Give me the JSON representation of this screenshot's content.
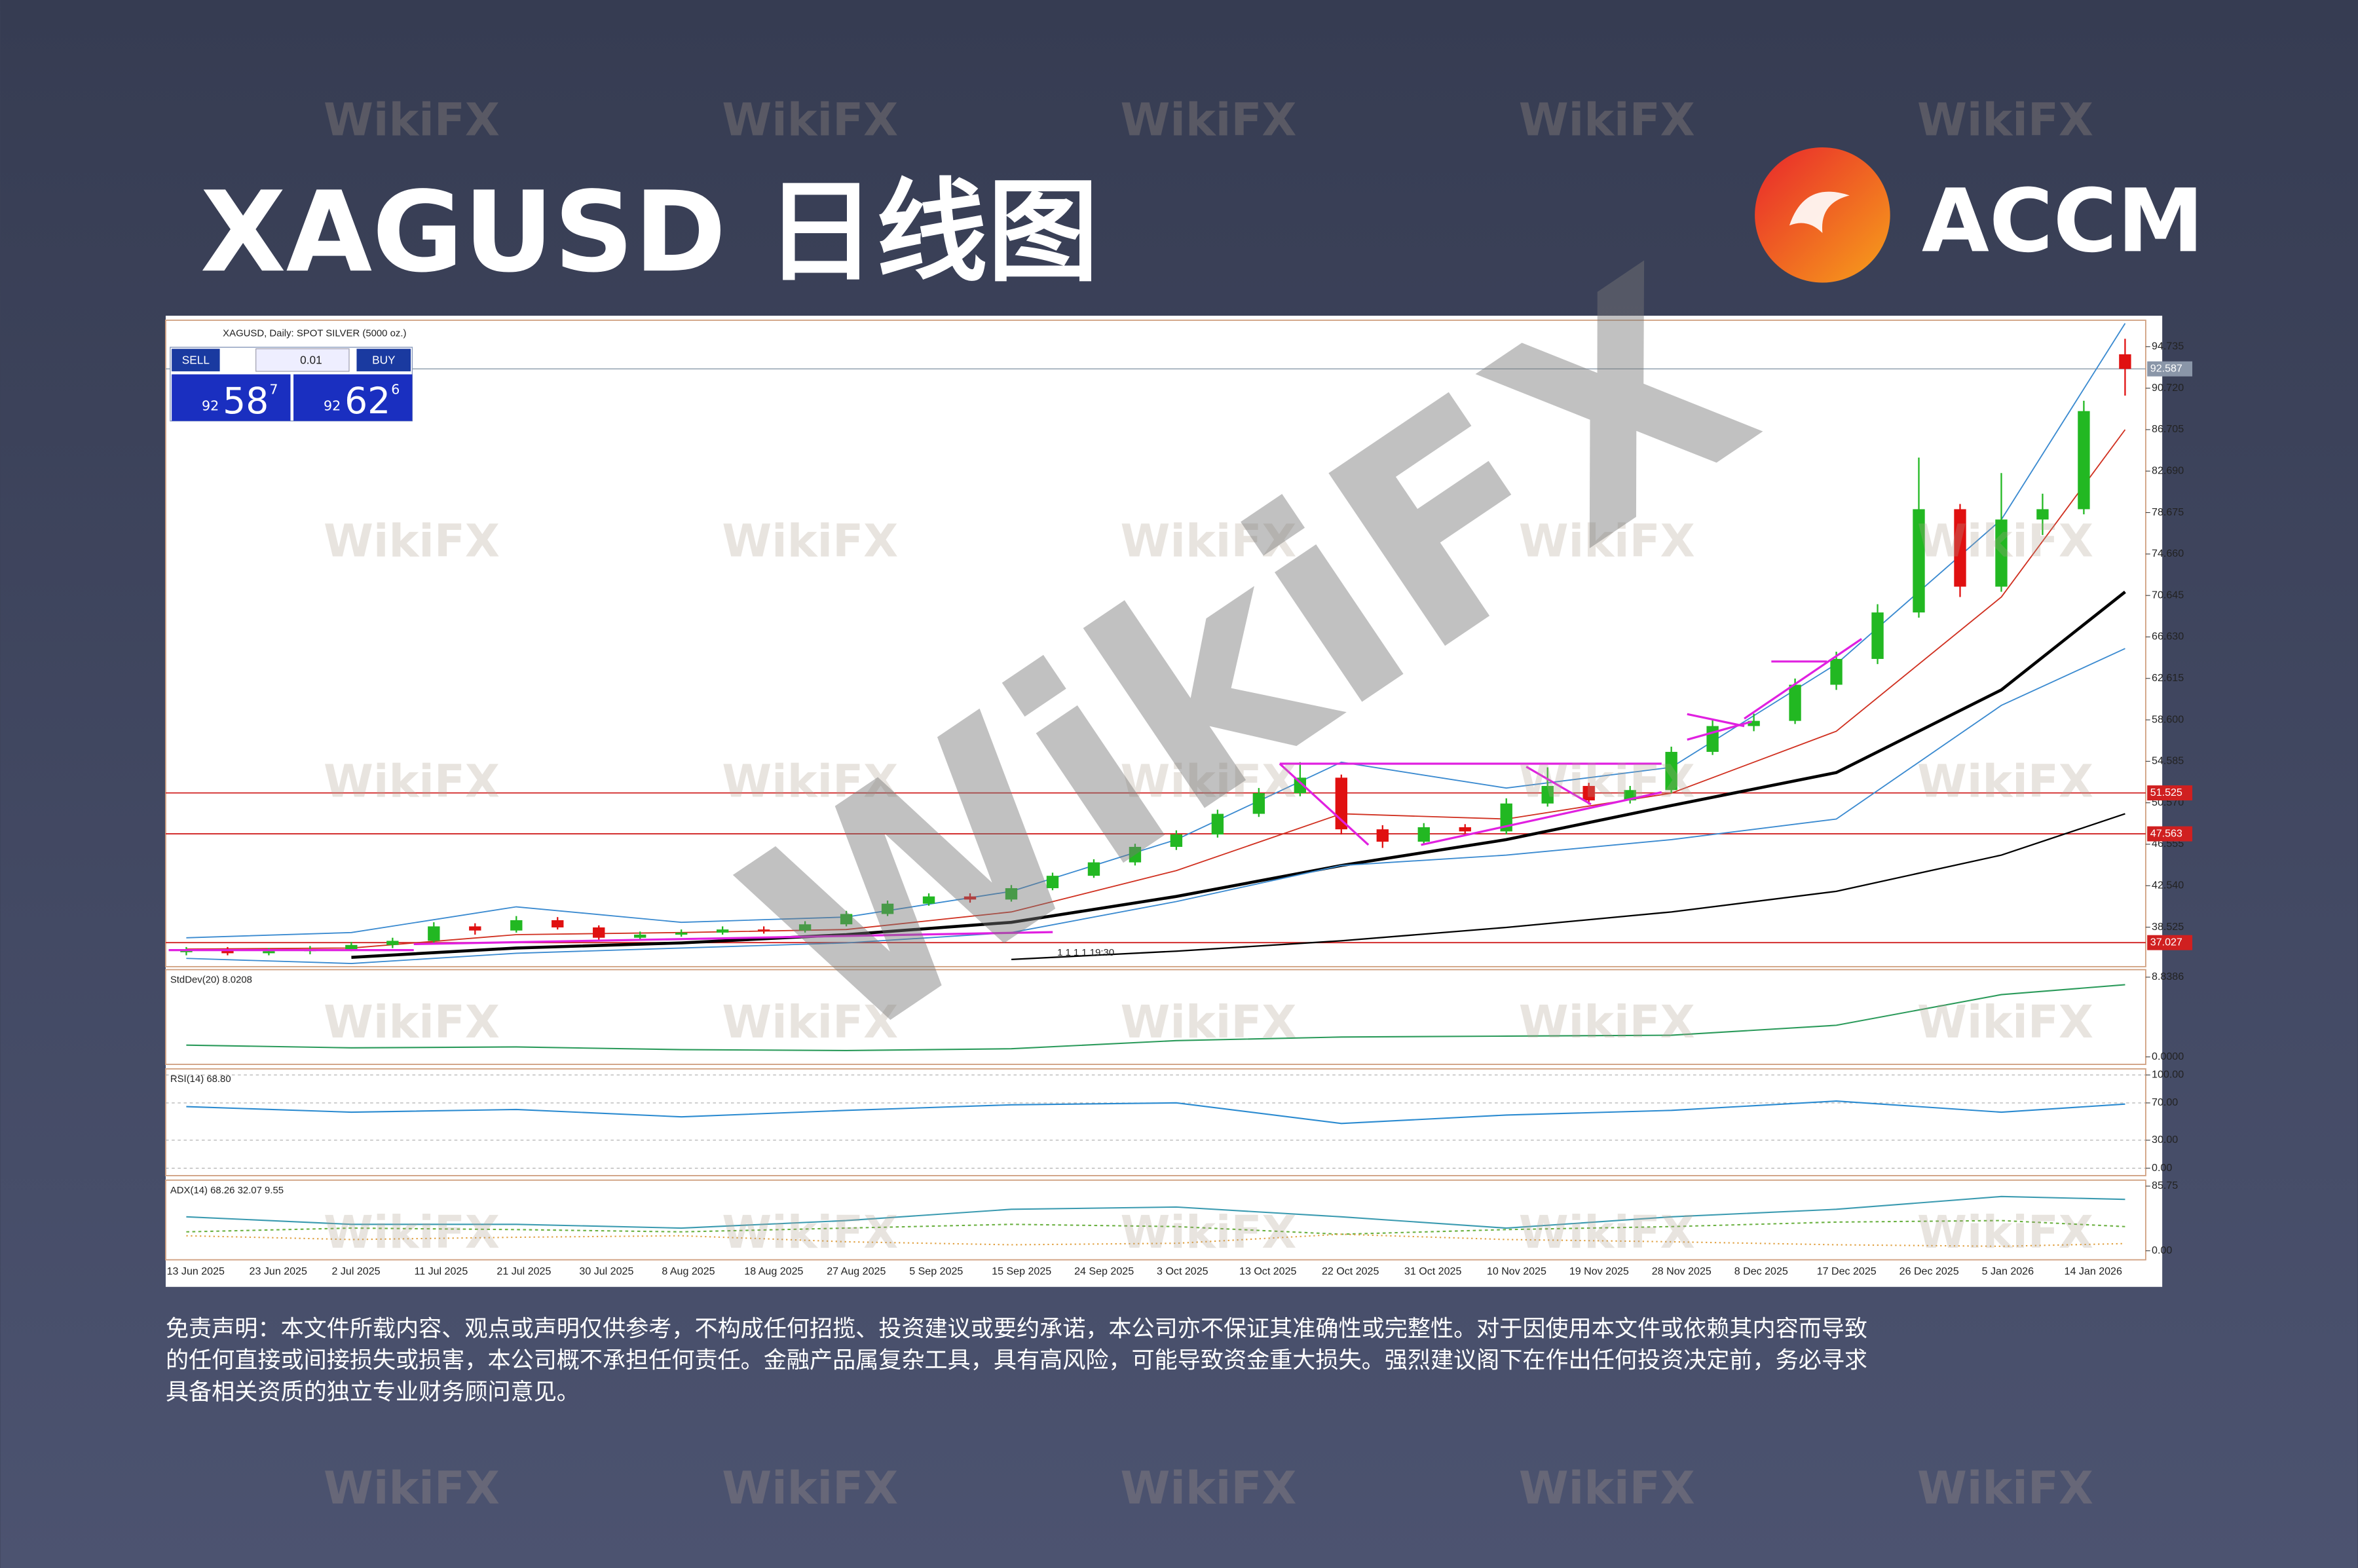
{
  "header": {
    "title": "XAGUSD 日线图",
    "logo_text": "ACCM"
  },
  "watermark": "WikiFX",
  "disclaimer": [
    "免责声明：本文件所载内容、观点或声明仅供参考，不构成任何招揽、投资建议或要约承诺，本公司亦不保证其准确性或完整性。对于因使用本文件或依赖其内容而导致",
    "的任何直接或间接损失或损害，本公司概不承担任何责任。金融产品属复杂工具，具有高风险，可能导致资金重大损失。强烈建议阁下在作出任何投资决定前，务必寻求",
    "具备相关资质的独立专业财务顾问意见。"
  ],
  "trade_panel": {
    "sell": "SELL",
    "volume": "0.01",
    "buy": "BUY",
    "bid": [
      "92",
      "58",
      "7"
    ],
    "ask": [
      "92",
      "62",
      "6"
    ]
  },
  "chart_data": {
    "type": "candlestick",
    "title": "XAGUSD, Daily: SPOT SILVER (5000 oz.)",
    "marker_label": "1 1 1 1 19:30",
    "categories": [
      "13 Jun 2025",
      null,
      "23 Jun 2025",
      null,
      "2 Jul 2025",
      null,
      "11 Jul 2025",
      null,
      "21 Jul 2025",
      null,
      "30 Jul 2025",
      null,
      "8 Aug 2025",
      null,
      "18 Aug 2025",
      null,
      "27 Aug 2025",
      null,
      "5 Sep 2025",
      null,
      "15 Sep 2025",
      null,
      "24 Sep 2025",
      null,
      "3 Oct 2025",
      null,
      "13 Oct 2025",
      null,
      "22 Oct 2025",
      null,
      "31 Oct 2025",
      null,
      "10 Nov 2025",
      null,
      "19 Nov 2025",
      null,
      "28 Nov 2025",
      null,
      "8 Dec 2025",
      null,
      "17 Dec 2025",
      null,
      "26 Dec 2025",
      null,
      "5 Jan 2026",
      null,
      "14 Jan 2026",
      null
    ],
    "open": [
      36.1,
      36.3,
      36.0,
      36.2,
      36.4,
      36.8,
      37.2,
      38.6,
      38.2,
      39.2,
      38.5,
      37.5,
      37.8,
      38.0,
      38.3,
      38.2,
      38.8,
      39.8,
      40.8,
      41.5,
      41.2,
      42.3,
      43.5,
      44.8,
      46.3,
      47.5,
      49.5,
      51.5,
      53.0,
      48.0,
      46.8,
      48.2,
      47.8,
      50.5,
      52.2,
      50.8,
      51.8,
      55.5,
      58.0,
      58.5,
      62.0,
      64.5,
      69.0,
      79.0,
      71.5,
      78.0,
      79.0,
      94.0
    ],
    "high": [
      36.6,
      36.6,
      36.5,
      36.7,
      37.1,
      37.5,
      39.0,
      38.9,
      39.6,
      39.5,
      38.7,
      38.1,
      38.3,
      38.6,
      38.6,
      39.1,
      40.1,
      41.1,
      41.8,
      41.8,
      42.6,
      43.8,
      45.1,
      46.6,
      47.9,
      49.9,
      52.0,
      54.5,
      53.3,
      48.4,
      48.6,
      48.5,
      51.0,
      54.0,
      52.5,
      52.2,
      56.0,
      58.6,
      59.2,
      62.6,
      65.2,
      69.8,
      84.0,
      79.5,
      82.5,
      80.5,
      89.5,
      95.5
    ],
    "low": [
      35.8,
      35.8,
      35.8,
      35.9,
      36.2,
      36.5,
      37.0,
      37.8,
      38.0,
      38.3,
      37.2,
      37.3,
      37.6,
      37.8,
      37.9,
      38.0,
      38.6,
      39.6,
      40.6,
      40.9,
      41.0,
      42.1,
      43.3,
      44.5,
      46.0,
      47.2,
      49.2,
      51.2,
      47.5,
      46.2,
      46.5,
      47.4,
      47.5,
      50.2,
      50.4,
      50.5,
      51.5,
      55.2,
      57.5,
      58.2,
      61.5,
      64.0,
      68.5,
      70.5,
      71.0,
      76.5,
      78.5,
      90.0
    ],
    "close": [
      36.3,
      36.0,
      36.2,
      36.4,
      36.8,
      37.2,
      38.6,
      38.2,
      39.2,
      38.5,
      37.5,
      37.8,
      38.0,
      38.3,
      38.2,
      38.8,
      39.8,
      40.8,
      41.5,
      41.2,
      42.3,
      43.5,
      44.8,
      46.3,
      47.5,
      49.5,
      51.5,
      53.0,
      48.0,
      46.8,
      48.2,
      47.8,
      50.5,
      52.2,
      50.8,
      51.8,
      55.5,
      58.0,
      58.5,
      62.0,
      64.5,
      69.0,
      79.0,
      71.5,
      78.0,
      79.0,
      88.5,
      92.587
    ],
    "up_color": "#22b822",
    "down_color": "#e01010",
    "overlays": [
      {
        "color": "#000000",
        "width": 2,
        "x": [
          4,
          8,
          12,
          16,
          20,
          24,
          28,
          32,
          36,
          40,
          44,
          47
        ],
        "values": [
          35.6,
          36.5,
          37.0,
          37.8,
          39.0,
          41.5,
          44.5,
          47.0,
          50.3,
          53.5,
          61.5,
          71.0
        ]
      },
      {
        "color": "#000000",
        "width": 1,
        "x": [
          20,
          24,
          28,
          32,
          36,
          40,
          44,
          47
        ],
        "values": [
          35.4,
          36.2,
          37.2,
          38.5,
          40.0,
          42.0,
          45.5,
          49.5
        ]
      },
      {
        "color": "#d03020",
        "width": 0.8,
        "x": [
          0,
          4,
          8,
          12,
          16,
          20,
          24,
          28,
          32,
          36,
          40,
          44,
          47
        ],
        "values": [
          36.4,
          36.5,
          37.8,
          38.0,
          38.3,
          40.0,
          44.0,
          49.5,
          49.0,
          51.5,
          57.5,
          70.5,
          86.7
        ]
      },
      {
        "color": "#3a8ad0",
        "width": 0.8,
        "x": [
          0,
          4,
          8,
          12,
          16,
          20,
          24,
          28,
          32,
          36,
          40,
          44,
          47
        ],
        "values": [
          37.5,
          38.0,
          40.5,
          39.0,
          39.5,
          42.0,
          47.0,
          54.5,
          52.0,
          54.0,
          64.0,
          78.0,
          97.0
        ]
      },
      {
        "color": "#3a8ad0",
        "width": 0.8,
        "x": [
          0,
          4,
          8,
          12,
          16,
          20,
          24,
          28,
          32,
          36,
          40,
          44,
          47
        ],
        "values": [
          35.5,
          35.0,
          36.0,
          36.5,
          37.0,
          38.0,
          41.0,
          44.5,
          45.5,
          47.0,
          49.0,
          60.0,
          65.5
        ]
      }
    ],
    "hlines": [
      {
        "value": 51.525,
        "color": "#d02020"
      },
      {
        "value": 47.563,
        "color": "#d02020"
      },
      {
        "value": 37.027,
        "color": "#d02020"
      }
    ],
    "last_price": 92.587,
    "ylim": [
      34.7,
      97.3
    ],
    "yticks": [
      38.525,
      {
        "value": 42.54,
        "label": "42.540"
      },
      46.555,
      {
        "value": 50.57,
        "label": "50.570"
      },
      54.585,
      {
        "value": 58.6,
        "label": "58.600"
      },
      62.615,
      {
        "value": 66.63,
        "label": "66.630"
      },
      70.645,
      {
        "value": 74.66,
        "label": "74.660"
      },
      78.675,
      {
        "value": 82.69,
        "label": "82.690"
      },
      86.705,
      {
        "value": 90.72,
        "label": "90.720"
      },
      94.735
    ],
    "panels": [
      {
        "title": "StdDev(20) 8.0208",
        "ylim": [
          -0.83,
          9.67
        ],
        "yticks": [
          8.8386,
          {
            "value": 0,
            "label": "0.0000"
          }
        ],
        "grid": false,
        "series": [
          {
            "color": "#2a9a5a",
            "dash": "",
            "x": [
              0,
              4,
              8,
              12,
              16,
              20,
              24,
              28,
              32,
              36,
              40,
              44,
              47
            ],
            "values": [
              1.3,
              1.0,
              1.1,
              0.8,
              0.7,
              0.9,
              1.8,
              2.2,
              2.3,
              2.4,
              3.5,
              6.9,
              8.0
            ]
          }
        ]
      },
      {
        "title": "RSI(14) 68.80",
        "ylim": [
          -8,
          106.5
        ],
        "yticks": [
          {
            "value": 100,
            "label": "100.00"
          },
          {
            "value": 70,
            "label": "70.00"
          },
          {
            "value": 30,
            "label": "30.00"
          },
          {
            "value": 0,
            "label": "0.00"
          }
        ],
        "grid": true,
        "series": [
          {
            "color": "#2a8ad0",
            "dash": "",
            "x": [
              0,
              4,
              8,
              12,
              16,
              20,
              24,
              28,
              32,
              36,
              40,
              44,
              47
            ],
            "values": [
              66,
              60,
              63,
              55,
              62,
              68,
              70,
              48,
              57,
              62,
              72,
              60,
              68.8
            ]
          }
        ]
      },
      {
        "title": "ADX(14) 68.26 32.07 9.55",
        "ylim": [
          -12,
          93.7
        ],
        "yticks": [
          85.75,
          {
            "value": 0,
            "label": "0.00"
          }
        ],
        "grid": false,
        "series": [
          {
            "color": "#3a9ab0",
            "dash": "",
            "x": [
              0,
              4,
              8,
              12,
              16,
              20,
              24,
              28,
              32,
              36,
              40,
              44,
              47
            ],
            "values": [
              45,
              35,
              35,
              30,
              40,
              55,
              58,
              45,
              30,
              45,
              55,
              72,
              68.26
            ]
          },
          {
            "color": "#6ab040",
            "dash": "2 2",
            "x": [
              0,
              4,
              8,
              12,
              16,
              20,
              24,
              28,
              32,
              36,
              40,
              44,
              47
            ],
            "values": [
              25,
              30,
              28,
              25,
              30,
              35,
              32,
              22,
              28,
              32,
              38,
              40,
              32.07
            ]
          },
          {
            "color": "#e0a040",
            "dash": "1 2",
            "x": [
              0,
              4,
              8,
              12,
              16,
              20,
              24,
              28,
              32,
              36,
              40,
              44,
              47
            ],
            "values": [
              20,
              15,
              18,
              20,
              12,
              8,
              10,
              22,
              15,
              12,
              8,
              6,
              9.55
            ]
          }
        ]
      }
    ]
  }
}
